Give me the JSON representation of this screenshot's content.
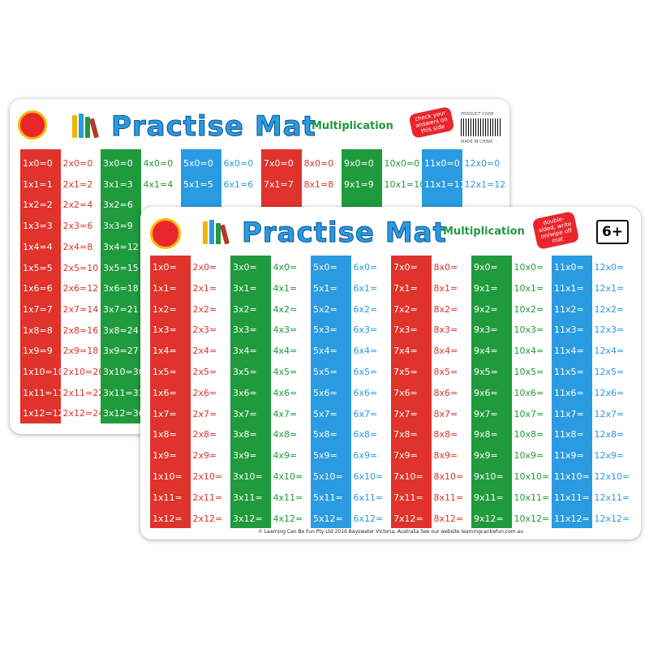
{
  "back_mat": {
    "title": "Practise Mat",
    "subtitle": "Multiplication",
    "badge": "check your answers on this side",
    "product_code": "PRODUCT CODE",
    "made_in": "MADE IN CHINA",
    "tables": [
      [
        "1x0=0",
        "1x1=1",
        "1x2=2",
        "1x3=3",
        "1x4=4",
        "1x5=5",
        "1x6=6",
        "1x7=7",
        "1x8=8",
        "1x9=9",
        "1x10=10",
        "1x11=11",
        "1x12=12"
      ],
      [
        "2x0=0",
        "2x1=2",
        "2x2=4",
        "2x3=6",
        "2x4=8",
        "2x5=10",
        "2x6=12",
        "2x7=14",
        "2x8=16",
        "2x9=18",
        "2x10=20",
        "2x11=22",
        "2x12=24"
      ],
      [
        "3x0=0",
        "3x1=3",
        "3x2=6",
        "3x3=9",
        "3x4=12",
        "3x5=15",
        "3x6=18",
        "3x7=21",
        "3x8=24",
        "3x9=27",
        "3x10=30",
        "3x11=33",
        "3x12=36"
      ],
      [
        "4x0=0",
        "4x1=4"
      ],
      [
        "5x0=0",
        "5x1=5"
      ],
      [
        "6x0=0",
        "6x1=6"
      ],
      [
        "7x0=0",
        "7x1=7"
      ],
      [
        "8x0=0",
        "8x1=8"
      ],
      [
        "9x0=0",
        "9x1=9"
      ],
      [
        "10x0=0",
        "10x1=10"
      ],
      [
        "11x0=0",
        "11x1=11"
      ],
      [
        "12x0=0",
        "12x1=12"
      ]
    ]
  },
  "front_mat": {
    "title": "Practise Mat",
    "subtitle": "Multiplication",
    "badge": "double-sided, write on/wipe off mat",
    "age": "6+",
    "footer": "© Learning Can Be Fun Pty Ltd 2016 Bayswater Victoria, Australia See our website learningcanbefun.com.au",
    "tables": [
      [
        "1x0=",
        "1x1=",
        "1x2=",
        "1x3=",
        "1x4=",
        "1x5=",
        "1x6=",
        "1x7=",
        "1x8=",
        "1x9=",
        "1x10=",
        "1x11=",
        "1x12="
      ],
      [
        "2x0=",
        "2x1=",
        "2x2=",
        "2x3=",
        "2x4=",
        "2x5=",
        "2x6=",
        "2x7=",
        "2x8=",
        "2x9=",
        "2x10=",
        "2x11=",
        "2x12="
      ],
      [
        "3x0=",
        "3x1=",
        "3x2=",
        "3x3=",
        "3x4=",
        "3x5=",
        "3x6=",
        "3x7=",
        "3x8=",
        "3x9=",
        "3x10=",
        "3x11=",
        "3x12="
      ],
      [
        "4x0=",
        "4x1=",
        "4x2=",
        "4x3=",
        "4x4=",
        "4x5=",
        "4x6=",
        "4x7=",
        "4x8=",
        "4x9=",
        "4x10=",
        "4x11=",
        "4x12="
      ],
      [
        "5x0=",
        "5x1=",
        "5x2=",
        "5x3=",
        "5x4=",
        "5x5=",
        "5x6=",
        "5x7=",
        "5x8=",
        "5x9=",
        "5x10=",
        "5x11=",
        "5x12="
      ],
      [
        "6x0=",
        "6x1=",
        "6x2=",
        "6x3=",
        "6x4=",
        "6x5=",
        "6x6=",
        "6x7=",
        "6x8=",
        "6x9=",
        "6x10=",
        "6x11=",
        "6x12="
      ],
      [
        "7x0=",
        "7x1=",
        "7x2=",
        "7x3=",
        "7x4=",
        "7x5=",
        "7x6=",
        "7x7=",
        "7x8=",
        "7x9=",
        "7x10=",
        "7x11=",
        "7x12="
      ],
      [
        "8x0=",
        "8x1=",
        "8x2=",
        "8x3=",
        "8x4=",
        "8x5=",
        "8x6=",
        "8x7=",
        "8x8=",
        "8x9=",
        "8x10=",
        "8x11=",
        "8x12="
      ],
      [
        "9x0=",
        "9x1=",
        "9x2=",
        "9x3=",
        "9x4=",
        "9x5=",
        "9x6=",
        "9x7=",
        "9x8=",
        "9x9=",
        "9x10=",
        "9x11=",
        "9x12="
      ],
      [
        "10x0=",
        "10x1=",
        "10x2=",
        "10x3=",
        "10x4=",
        "10x5=",
        "10x6=",
        "10x7=",
        "10x8=",
        "10x9=",
        "10x10=",
        "10x11=",
        "10x12="
      ],
      [
        "11x0=",
        "11x1=",
        "11x2=",
        "11x3=",
        "11x4=",
        "11x5=",
        "11x6=",
        "11x7=",
        "11x8=",
        "11x9=",
        "11x10=",
        "11x11=",
        "11x12="
      ],
      [
        "12x0=",
        "12x1=",
        "12x2=",
        "12x3=",
        "12x4=",
        "12x5=",
        "12x6=",
        "12x7=",
        "12x8=",
        "12x9=",
        "12x10=",
        "12x11=",
        "12x12="
      ]
    ]
  }
}
